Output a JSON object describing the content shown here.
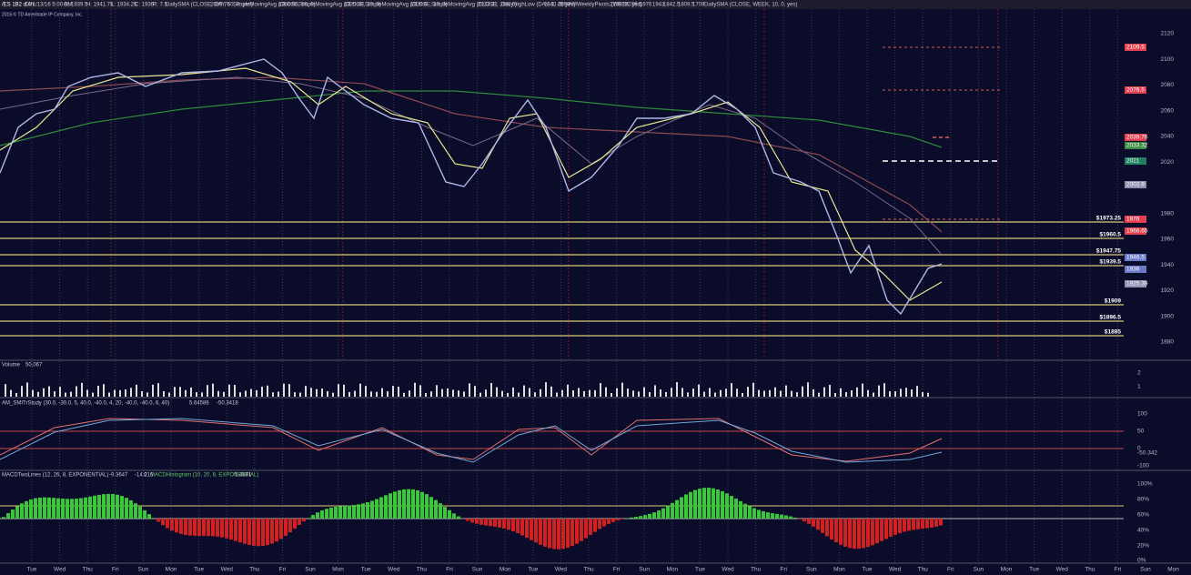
{
  "header": {
    "symbol": "/ES 1B2 d 4h",
    "items": [
      "D: 1/13/16 5:00 AM",
      "O: 1939.5",
      "H: 1941.75",
      "L: 1934.25",
      "C: 1936",
      "R: 7.5",
      "DailySMA (CLOSE, DAY, 50, 0, yes)",
      "2039.76",
      "SimpleMovingAvg (CLOSE, 50, 0)",
      "1966.65",
      "SimpleMovingAvg (CLOSE, 20, 0)",
      "1925.39",
      "SimpleMovingAvg (CLOSE, 10, 0)",
      "1926.6",
      "SimpleMovingAvg (CLOSE, 200, 0)",
      "2033.32",
      "DailyHighLow (DAY, 1, -1, yes)",
      "1940.25",
      "1899",
      "AMWeeklyPivots (WEEK, yes)",
      "2109.5",
      "2076.5",
      "1976",
      "1943",
      "1842.5",
      "1809.5",
      "1709",
      "DailySMA (CLOSE, WEEK, 10, 0, yes)"
    ],
    "copyright": "2016 © TD Ameritrade IP Company, Inc."
  },
  "price_axis": {
    "ticks": [
      "2120",
      "2100",
      "2080",
      "2060",
      "2040",
      "2020",
      "1980",
      "1960",
      "1940",
      "1920",
      "1900",
      "1880"
    ],
    "tags": [
      "2109.5",
      "2076.5",
      "2039.76",
      "2033.32",
      "2021",
      "2002.9",
      "1976",
      "1966.65",
      "1946.5",
      "1936",
      "1925.39"
    ]
  },
  "levels": [
    "$1973.25",
    "$1960.5",
    "$1947.75",
    "$1939.5",
    "$1909",
    "$1896.5",
    "$1885"
  ],
  "volume": {
    "title": "Volume",
    "value": "50,067",
    "ticks": [
      "2",
      "1"
    ]
  },
  "oscillator": {
    "title": "AM_SMITrStudy (30.0, -30.0, 5, 40.0, -40.0, 4, 20, -40.0, -40.0, 6, 40)",
    "values": [
      "5.64586",
      "-50.3418"
    ],
    "ticks": [
      "100",
      "50",
      "0",
      "-50.342",
      "-100"
    ]
  },
  "macd": {
    "title": "MACDTwoLines (12, 26, 8, EXPONENTIAL)",
    "values": [
      "-9.3647",
      "-14.216",
      "0"
    ],
    "hist_title": "MACDHistogram (10, 20, 8, EXPONENTIAL)",
    "hist_value": "5.4881",
    "ticks": [
      "100%",
      "80%",
      "60%",
      "40%",
      "20%",
      "0%"
    ]
  },
  "x_axis": [
    "Tue",
    "Wed",
    "Thu",
    "Fri",
    "Sun",
    "Mon",
    "Tue",
    "Wed",
    "Thu",
    "Fri",
    "Sun",
    "Mon",
    "Tue",
    "Wed",
    "Thu",
    "Fri",
    "Sun",
    "Mon",
    "Tue",
    "Wed",
    "Thu",
    "Fri",
    "Sun",
    "Mon",
    "Tue",
    "Wed",
    "Thu",
    "Fri",
    "Sun",
    "Mon",
    "Tue",
    "Wed",
    "Thu",
    "Fri",
    "Sun",
    "Mon",
    "Tue",
    "Wed",
    "Thu",
    "Fri",
    "Sun",
    "Mon"
  ]
}
